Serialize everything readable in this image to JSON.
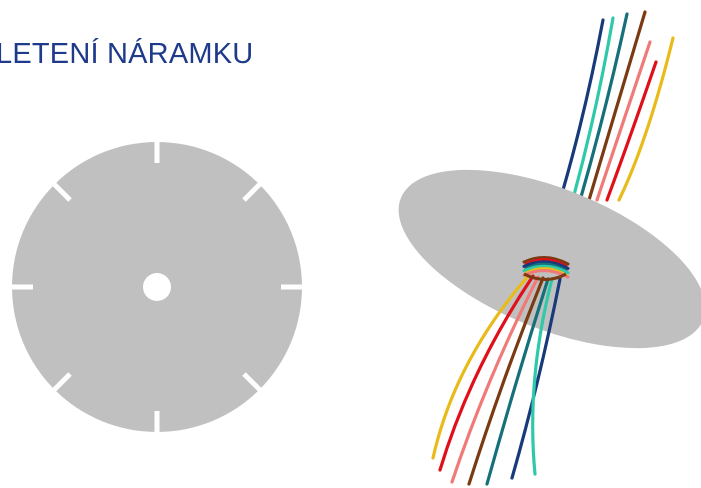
{
  "title": "LETENÍ NÁRAMKU",
  "colors": {
    "title": "#1f3a8a",
    "disk": "#c0c0c0",
    "background": "#ffffff"
  },
  "threads": [
    {
      "name": "navy",
      "color": "#173a7a"
    },
    {
      "name": "turquoise",
      "color": "#2ec9a9"
    },
    {
      "name": "teal",
      "color": "#16707a"
    },
    {
      "name": "brown",
      "color": "#7a3a12"
    },
    {
      "name": "pink",
      "color": "#f07a78"
    },
    {
      "name": "red",
      "color": "#e0101a"
    },
    {
      "name": "yellow",
      "color": "#e8bb1a"
    }
  ]
}
